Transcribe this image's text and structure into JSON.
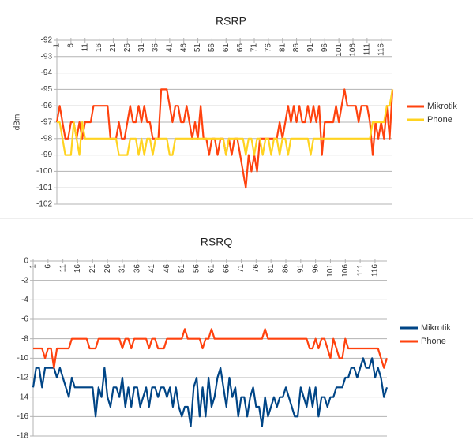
{
  "chart_data": [
    {
      "type": "line",
      "title": "RSRP",
      "y_label": "dBm",
      "category_axis": "top",
      "grid": true,
      "categories": [
        "1",
        null,
        null,
        null,
        null,
        "6",
        null,
        null,
        null,
        null,
        "11",
        null,
        null,
        null,
        null,
        "16",
        null,
        null,
        null,
        null,
        "21",
        null,
        null,
        null,
        null,
        "26",
        null,
        null,
        null,
        null,
        "31",
        null,
        null,
        null,
        null,
        "36",
        null,
        null,
        null,
        null,
        "41",
        null,
        null,
        null,
        null,
        "46",
        null,
        null,
        null,
        null,
        "51",
        null,
        null,
        null,
        null,
        "56",
        null,
        null,
        null,
        null,
        "61",
        null,
        null,
        null,
        null,
        "66",
        null,
        null,
        null,
        null,
        "71",
        null,
        null,
        null,
        null,
        "76",
        null,
        null,
        null,
        null,
        "81",
        null,
        null,
        null,
        null,
        "86",
        null,
        null,
        null,
        null,
        "91",
        null,
        null,
        null,
        null,
        "96",
        null,
        null,
        null,
        null,
        "101",
        null,
        null,
        null,
        null,
        "106",
        null,
        null,
        null,
        null,
        "111",
        null,
        null,
        null,
        null,
        "116",
        null,
        null,
        null,
        null
      ],
      "ylim": [
        -102,
        -92
      ],
      "yticks": [
        -92,
        -93,
        -94,
        -95,
        -96,
        -97,
        -98,
        -99,
        -100,
        -101,
        -102
      ],
      "series": [
        {
          "name": "Mikrotik",
          "color": "#ff420e",
          "values": [
            -97,
            -96,
            -97,
            -98,
            -98,
            -97,
            -97,
            -98,
            -97,
            -98,
            -97,
            -97,
            -97,
            -96,
            -96,
            -96,
            -96,
            -96,
            -96,
            -98,
            -98,
            -98,
            -97,
            -98,
            -98,
            -97,
            -96,
            -97,
            -97,
            -96,
            -97,
            -96,
            -97,
            -97,
            -98,
            -98,
            -98,
            -95,
            -95,
            -95,
            -96,
            -97,
            -96,
            -96,
            -97,
            -97,
            -96,
            -97,
            -98,
            -97,
            -98,
            -96,
            -98,
            -98,
            -99,
            -98,
            -98,
            -99,
            -98,
            -98,
            -99,
            -98,
            -99,
            -98,
            -98,
            -99,
            -100,
            -101,
            -99,
            -100,
            -99,
            -100,
            -98,
            -98,
            -98,
            -98,
            -98,
            -98,
            -98,
            -97,
            -98,
            -97,
            -96,
            -97,
            -96,
            -97,
            -96,
            -97,
            -97,
            -96,
            -97,
            -96,
            -97,
            -96,
            -99,
            -97,
            -97,
            -97,
            -97,
            -96,
            -97,
            -96,
            -95,
            -96,
            -96,
            -96,
            -96,
            -97,
            -96,
            -96,
            -96,
            -97,
            -99,
            -97,
            -98,
            -97,
            -98,
            -96,
            -98,
            -95
          ]
        },
        {
          "name": "Phone",
          "color": "#ffd320",
          "values": [
            -97,
            -97,
            -98,
            -99,
            -99,
            -99,
            -97,
            -98,
            -99,
            -97,
            -98,
            -98,
            -98,
            -98,
            -98,
            -98,
            -98,
            -98,
            -98,
            -98,
            -98,
            -98,
            -99,
            -99,
            -99,
            -99,
            -98,
            -98,
            -98,
            -99,
            -98,
            -99,
            -98,
            -98,
            -99,
            -98,
            -98,
            -98,
            -98,
            -98,
            -99,
            -99,
            -98,
            -98,
            -98,
            -98,
            -98,
            -98,
            -98,
            -98,
            -98,
            -98,
            -98,
            -98,
            -98,
            -98,
            -98,
            -98,
            -98,
            -98,
            -99,
            -98,
            -98,
            -98,
            -98,
            -98,
            -98,
            -99,
            -98,
            -98,
            -99,
            -98,
            -98,
            -99,
            -98,
            -98,
            -99,
            -98,
            -98,
            -99,
            -98,
            -98,
            -99,
            -98,
            -98,
            -98,
            -98,
            -98,
            -98,
            -98,
            -99,
            -98,
            -98,
            -98,
            -98,
            -98,
            -98,
            -98,
            -98,
            -98,
            -98,
            -98,
            -98,
            -98,
            -98,
            -98,
            -98,
            -98,
            -98,
            -98,
            -98,
            -98,
            -97,
            -97,
            -97,
            -97,
            -97,
            -96,
            -96,
            -95
          ]
        }
      ]
    },
    {
      "type": "line",
      "title": "RSRQ",
      "category_axis": "top",
      "grid": true,
      "categories": [
        "1",
        null,
        null,
        null,
        null,
        "6",
        null,
        null,
        null,
        null,
        "11",
        null,
        null,
        null,
        null,
        "16",
        null,
        null,
        null,
        null,
        "21",
        null,
        null,
        null,
        null,
        "26",
        null,
        null,
        null,
        null,
        "31",
        null,
        null,
        null,
        null,
        "36",
        null,
        null,
        null,
        null,
        "41",
        null,
        null,
        null,
        null,
        "46",
        null,
        null,
        null,
        null,
        "51",
        null,
        null,
        null,
        null,
        "56",
        null,
        null,
        null,
        null,
        "61",
        null,
        null,
        null,
        null,
        "66",
        null,
        null,
        null,
        null,
        "71",
        null,
        null,
        null,
        null,
        "76",
        null,
        null,
        null,
        null,
        "81",
        null,
        null,
        null,
        null,
        "86",
        null,
        null,
        null,
        null,
        "91",
        null,
        null,
        null,
        null,
        "96",
        null,
        null,
        null,
        null,
        "101",
        null,
        null,
        null,
        null,
        "106",
        null,
        null,
        null,
        null,
        "111",
        null,
        null,
        null,
        null,
        "116",
        null,
        null,
        null,
        null
      ],
      "ylim": [
        -18,
        0
      ],
      "yticks": [
        0,
        -2,
        -4,
        -6,
        -8,
        -10,
        -12,
        -14,
        -16,
        -18
      ],
      "series": [
        {
          "name": "Mikrotik",
          "color": "#004586",
          "values": [
            -13,
            -11,
            -11,
            -13,
            -11,
            -11,
            -11,
            -11,
            -12,
            -11,
            -12,
            -13,
            -14,
            -12,
            -13,
            -13,
            -13,
            -13,
            -13,
            -13,
            -13,
            -16,
            -13,
            -14,
            -11,
            -14,
            -15,
            -13,
            -13,
            -14,
            -12,
            -15,
            -13,
            -15,
            -13,
            -13,
            -15,
            -14,
            -13,
            -15,
            -13,
            -13,
            -14,
            -13,
            -13,
            -14,
            -13,
            -15,
            -13,
            -15,
            -16,
            -15,
            -15,
            -17,
            -13,
            -12,
            -16,
            -13,
            -16,
            -12,
            -15,
            -14,
            -12,
            -11,
            -13,
            -15,
            -12,
            -14,
            -13,
            -16,
            -14,
            -14,
            -16,
            -14,
            -13,
            -15,
            -15,
            -17,
            -14,
            -16,
            -15,
            -14,
            -15,
            -14,
            -14,
            -13,
            -14,
            -15,
            -16,
            -16,
            -13,
            -14,
            -15,
            -13,
            -15,
            -13,
            -16,
            -14,
            -14,
            -15,
            -14,
            -14,
            -13,
            -13,
            -13,
            -12,
            -12,
            -11,
            -11,
            -12,
            -11,
            -10,
            -11,
            -11,
            -10,
            -12,
            -11,
            -12,
            -14,
            -13
          ]
        },
        {
          "name": "Phone",
          "color": "#ff420e",
          "values": [
            -9,
            -9,
            -9,
            -9,
            -10,
            -9,
            -9,
            -11,
            -9,
            -9,
            -9,
            -9,
            -9,
            -8,
            -8,
            -8,
            -8,
            -8,
            -8,
            -9,
            -9,
            -9,
            -8,
            -8,
            -8,
            -8,
            -8,
            -8,
            -8,
            -8,
            -9,
            -8,
            -8,
            -9,
            -8,
            -8,
            -8,
            -8,
            -8,
            -9,
            -8,
            -8,
            -9,
            -9,
            -9,
            -8,
            -8,
            -8,
            -8,
            -8,
            -8,
            -7,
            -8,
            -8,
            -8,
            -8,
            -8,
            -9,
            -8,
            -8,
            -7,
            -8,
            -8,
            -8,
            -8,
            -8,
            -8,
            -8,
            -8,
            -8,
            -8,
            -8,
            -8,
            -8,
            -8,
            -8,
            -8,
            -8,
            -7,
            -8,
            -8,
            -8,
            -8,
            -8,
            -8,
            -8,
            -8,
            -8,
            -8,
            -8,
            -8,
            -8,
            -8,
            -9,
            -9,
            -8,
            -9,
            -8,
            -8,
            -9,
            -10,
            -8,
            -9,
            -10,
            -10,
            -8,
            -9,
            -9,
            -9,
            -9,
            -9,
            -9,
            -9,
            -9,
            -9,
            -9,
            -9,
            -10,
            -11,
            -10
          ]
        }
      ]
    }
  ]
}
